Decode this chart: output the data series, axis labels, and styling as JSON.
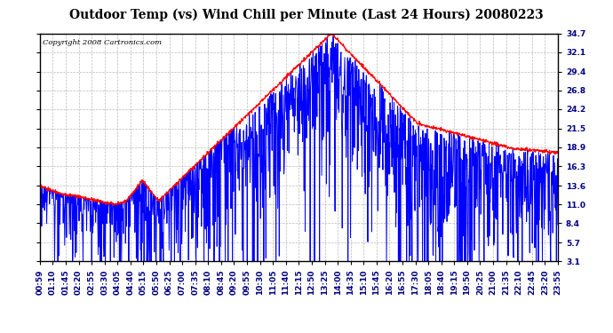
{
  "title": "Outdoor Temp (vs) Wind Chill per Minute (Last 24 Hours) 20080223",
  "copyright": "Copyright 2008 Cartronics.com",
  "yticks": [
    3.1,
    5.7,
    8.4,
    11.0,
    13.6,
    16.3,
    18.9,
    21.5,
    24.2,
    26.8,
    29.4,
    32.1,
    34.7
  ],
  "xtick_labels": [
    "00:59",
    "01:10",
    "01:45",
    "02:20",
    "02:55",
    "03:30",
    "04:05",
    "04:40",
    "05:15",
    "05:50",
    "06:25",
    "07:00",
    "07:35",
    "08:10",
    "08:45",
    "09:20",
    "09:55",
    "10:30",
    "11:05",
    "11:40",
    "12:15",
    "12:50",
    "13:25",
    "14:00",
    "14:35",
    "15:10",
    "15:45",
    "16:20",
    "16:55",
    "17:30",
    "18:05",
    "18:40",
    "19:15",
    "19:50",
    "20:25",
    "21:00",
    "21:35",
    "22:10",
    "22:45",
    "23:20",
    "23:55"
  ],
  "bg_color": "#ffffff",
  "plot_bg_color": "#ffffff",
  "grid_color": "#bbbbbb",
  "temp_color": "#ff0000",
  "windchill_color": "#0000ff",
  "title_color": "#000000",
  "border_color": "#000000",
  "ymin": 3.1,
  "ymax": 34.7,
  "n_points": 1440,
  "title_fontsize": 10,
  "tick_fontsize": 6.5,
  "copyright_fontsize": 6
}
